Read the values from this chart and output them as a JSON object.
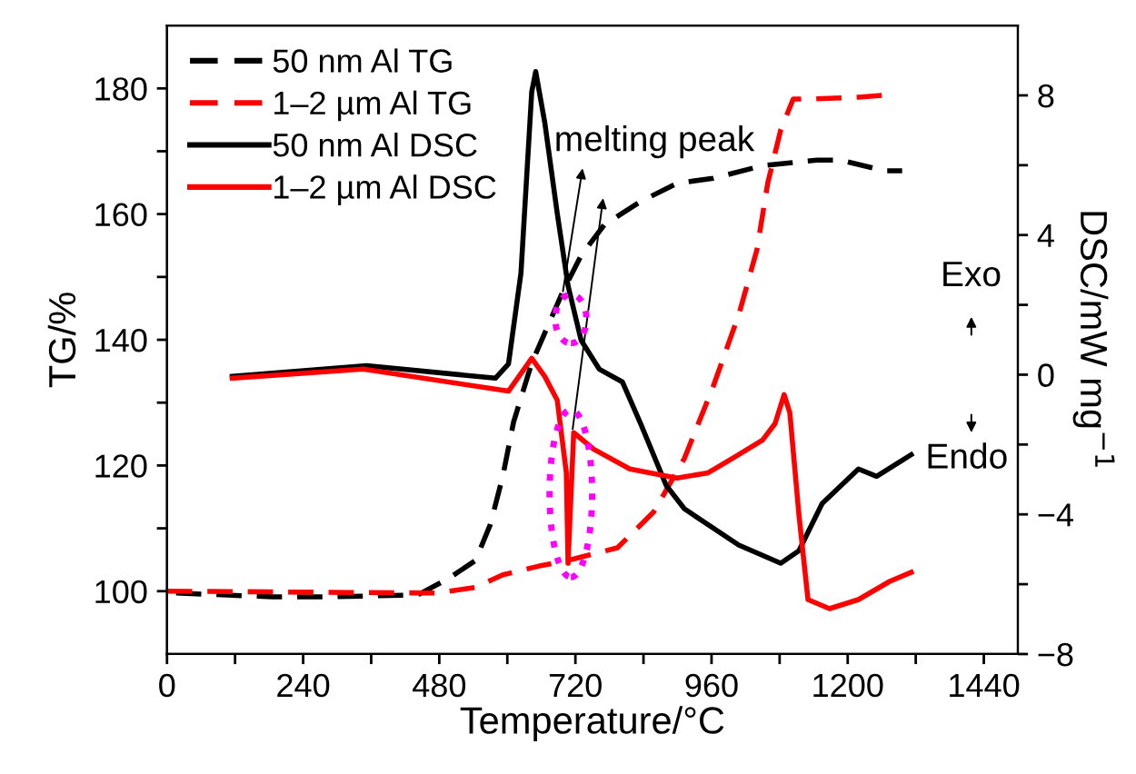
{
  "chart_data": {
    "type": "line",
    "xlabel": "Temperature/°C",
    "ylabel": "TG/%",
    "y2label": "DSC/mW mg$^{−1}$",
    "xlim": [
      0,
      1500
    ],
    "xticks": [
      0,
      {
        "value": 120,
        "label": null
      },
      240,
      {
        "value": 360,
        "label": null
      },
      480,
      {
        "value": 600,
        "label": null
      },
      720,
      {
        "value": 840,
        "label": null
      },
      960,
      {
        "value": 1080,
        "label": null
      },
      1200,
      {
        "value": 1320,
        "label": null
      },
      1440
    ],
    "ylim": [
      90,
      190
    ],
    "yticks": [
      100,
      {
        "value": 110,
        "label": null
      },
      120,
      {
        "value": 130,
        "label": null
      },
      140,
      {
        "value": 150,
        "label": null
      },
      160,
      {
        "value": 170,
        "label": null
      },
      180
    ],
    "y2lim": [
      -8,
      10
    ],
    "y2ticks": [
      -8,
      {
        "value": -6,
        "label": null
      },
      -4,
      {
        "value": -2,
        "label": null
      },
      0,
      {
        "value": 2,
        "label": null
      },
      4,
      {
        "value": 6,
        "label": null
      },
      8
    ],
    "legend": "top left",
    "grid": false,
    "marker": "none",
    "annotations": [
      {
        "text": "melting peak",
        "x": 698,
        "y": 147.7
      },
      "Exo",
      "Endo"
    ],
    "series": [
      {
        "name": "50 nm Al TG",
        "color": "#000000",
        "line_style": "dashed",
        "axis": "y",
        "x": [
          16,
          186,
          282,
          442,
          496,
          544,
          570,
          592,
          611,
          643,
          698,
          730,
          771,
          835,
          899,
          963,
          1050,
          1146,
          1187,
          1264,
          1296
        ],
        "values": [
          99.7,
          99.1,
          99.1,
          99.4,
          102,
          104.9,
          110.6,
          118.3,
          126.9,
          136.3,
          147.7,
          153.4,
          158.3,
          162,
          164.9,
          165.7,
          167.7,
          168.6,
          168.6,
          166.9,
          166.9
        ]
      },
      {
        "name": "1–2 µm Al TG",
        "color": "#ff0000",
        "line_style": "dashed",
        "axis": "y",
        "x": [
          0,
          474,
          544,
          592,
          656,
          707,
          794,
          858,
          912,
          963,
          1008,
          1040,
          1059,
          1082,
          1104,
          1136,
          1219,
          1264
        ],
        "values": [
          100,
          99.7,
          100.6,
          102.6,
          104,
          104.9,
          106.9,
          112.6,
          121.1,
          132.6,
          144,
          154.3,
          164.9,
          173.4,
          178.3,
          178.3,
          178.6,
          178.9
        ]
      },
      {
        "name": "50 nm Al DSC",
        "color": "#000000",
        "line_style": "solid",
        "axis": "y2",
        "x": [
          115,
          352,
          579,
          602,
          624,
          643,
          650,
          666,
          688,
          707,
          730,
          762,
          803,
          835,
          880,
          912,
          1008,
          1082,
          1114,
          1155,
          1219,
          1251,
          1312
        ],
        "values": [
          -0.05,
          0.26,
          -0.1,
          0.31,
          2.91,
          8.1,
          8.68,
          7.22,
          4.62,
          2.55,
          0.99,
          0.16,
          -0.21,
          -1.4,
          -3.17,
          -3.84,
          -4.88,
          -5.4,
          -5.04,
          -3.69,
          -2.7,
          -2.91,
          -2.29
        ]
      },
      {
        "name": "1–2 µm Al DSC",
        "color": "#ff0000",
        "line_style": "solid",
        "axis": "y2",
        "x": [
          115,
          346,
          602,
          643,
          666,
          688,
          704,
          707,
          717,
          752,
          816,
          899,
          954,
          1008,
          1050,
          1072,
          1088,
          1098,
          1114,
          1130,
          1168,
          1219,
          1274,
          1312
        ],
        "values": [
          -0.1,
          0.16,
          -0.47,
          0.47,
          -0.05,
          -0.73,
          -2.81,
          -5.4,
          -1.66,
          -2.13,
          -2.7,
          -2.96,
          -2.81,
          -2.29,
          -1.87,
          -1.4,
          -0.57,
          -1.09,
          -4,
          -6.44,
          -6.7,
          -6.44,
          -5.92,
          -5.66
        ]
      }
    ]
  }
}
